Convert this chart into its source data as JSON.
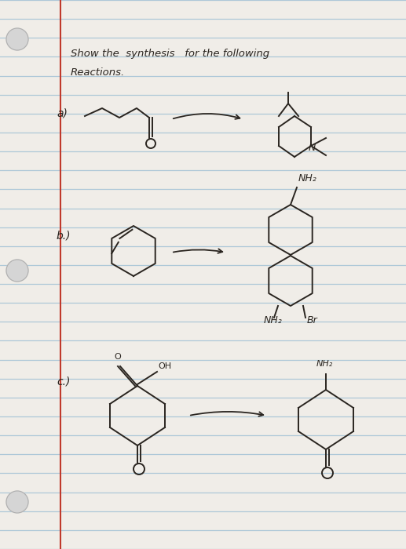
{
  "paper_color": "#f0ede8",
  "line_color": "#aec8d8",
  "red_line_x": 0.148,
  "num_lines": 30,
  "title_line1": "Show the  synthesis   for the following",
  "title_line2": "Reactions.",
  "label_a": "a)",
  "label_b": "b.)",
  "label_c": "c.)",
  "ink_color": "#2a2520",
  "hole_color": "#c8c8c8"
}
